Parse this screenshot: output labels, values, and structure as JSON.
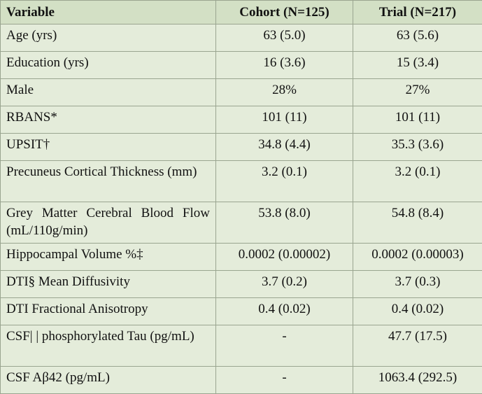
{
  "table": {
    "headers": [
      "Variable",
      "Cohort (N=125)",
      "Trial (N=217)"
    ],
    "rows": [
      {
        "variable": "Age (yrs)",
        "cohort": "63 (5.0)",
        "trial": "63 (5.6)"
      },
      {
        "variable": "Education (yrs)",
        "cohort": "16 (3.6)",
        "trial": "15 (3.4)"
      },
      {
        "variable": "Male",
        "cohort": "28%",
        "trial": "27%"
      },
      {
        "variable": "RBANS*",
        "cohort": "101 (11)",
        "trial": "101 (11)"
      },
      {
        "variable": "UPSIT†",
        "cohort": "34.8 (4.4)",
        "trial": "35.3 (3.6)"
      },
      {
        "variable": "Precuneus Cortical Thickness (mm)",
        "cohort": "3.2 (0.1)",
        "trial": "3.2 (0.1)"
      },
      {
        "variable": "Grey Matter Cerebral Blood Flow (mL/110g/min)",
        "cohort": "53.8 (8.0)",
        "trial": "54.8 (8.4)"
      },
      {
        "variable": "Hippocampal Volume %‡",
        "cohort": "0.0002 (0.00002)",
        "trial": "0.0002 (0.00003)"
      },
      {
        "variable": "DTI§ Mean Diffusivity",
        "cohort": "3.7 (0.2)",
        "trial": "3.7 (0.3)"
      },
      {
        "variable": "DTI Fractional Anisotropy",
        "cohort": "0.4 (0.02)",
        "trial": "0.4 (0.02)"
      },
      {
        "variable": "CSF| | phosphorylated Tau (pg/mL)",
        "cohort": "-",
        "trial": "47.7 (17.5)"
      },
      {
        "variable": "CSF Aβ42 (pg/mL)",
        "cohort": "-",
        "trial": "1063.4 (292.5)"
      }
    ]
  }
}
